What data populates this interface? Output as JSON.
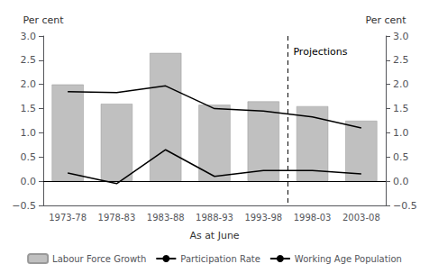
{
  "chart_data": {
    "type": "bar",
    "categories": [
      "1973-78",
      "1978-83",
      "1983-88",
      "1988-93",
      "1993-98",
      "1998-03",
      "2003-08"
    ],
    "series": [
      {
        "name": "Labour Force Growth",
        "type": "bar",
        "color": "#c0c0c0",
        "values": [
          2.0,
          1.6,
          2.65,
          1.58,
          1.65,
          1.55,
          1.25
        ]
      },
      {
        "name": "Participation Rate",
        "type": "line",
        "color": "#000000",
        "values": [
          1.85,
          1.83,
          1.97,
          1.5,
          1.45,
          1.33,
          1.1
        ]
      },
      {
        "name": "Working Age Population",
        "type": "line",
        "color": "#000000",
        "values": [
          0.17,
          -0.05,
          0.65,
          0.1,
          0.22,
          0.22,
          0.15
        ]
      }
    ],
    "xlabel": "As at June",
    "ylabel": "Per cent",
    "y2label": "Per cent",
    "ylim": [
      -0.5,
      3.0
    ],
    "yticks": [
      {
        "value": -0.5,
        "label": "−0.5"
      },
      {
        "value": 0,
        "label": "0.0"
      },
      0.5,
      {
        "value": 1,
        "label": "1.0"
      },
      1.5,
      {
        "value": 2,
        "label": "2.0"
      },
      2.5,
      {
        "value": 3,
        "label": "3.0"
      }
    ],
    "y2lim": [
      -0.5,
      3.0
    ],
    "y2ticks": [
      {
        "value": -0.5,
        "label": "−0.5"
      },
      {
        "value": 0,
        "label": "0.0"
      },
      0.5,
      {
        "value": 1,
        "label": "1.0"
      },
      1.5,
      {
        "value": 2,
        "label": "2.0"
      },
      2.5,
      {
        "value": 3,
        "label": "3.0"
      }
    ],
    "annotations": [
      {
        "text": "Projections",
        "after": "1993-98",
        "y": 2.78
      }
    ],
    "grid": false,
    "legend": "bottom"
  }
}
